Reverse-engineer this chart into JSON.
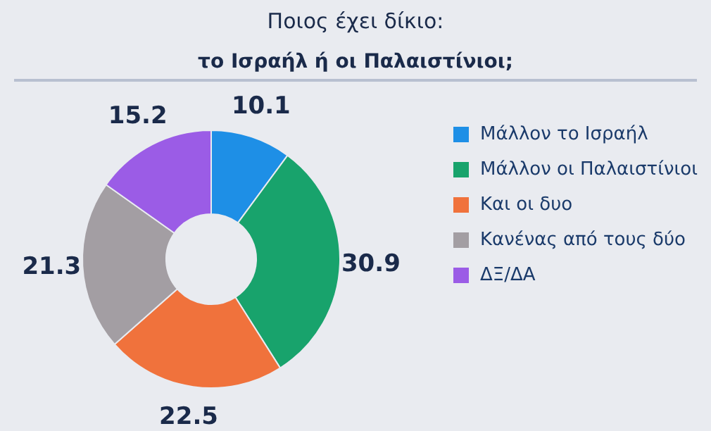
{
  "chart_data": {
    "type": "donut",
    "title": "Ποιος έχει δίκιο:",
    "subtitle": "το Ισραήλ ή οι Παλαιστίνιοι;",
    "categories": [
      "Μάλλον το Ισραήλ",
      "Μάλλον οι Παλαιστίνιοι",
      "Και οι δυο",
      "Κανένας από τους δύο",
      "ΔΞ/ΔΑ"
    ],
    "values": [
      10.1,
      30.9,
      22.5,
      21.3,
      15.2
    ],
    "colors": [
      "#1e8fe6",
      "#18a36c",
      "#f0723c",
      "#a39ea3",
      "#9b5ce6"
    ],
    "data_labels": true,
    "legend": "right"
  }
}
